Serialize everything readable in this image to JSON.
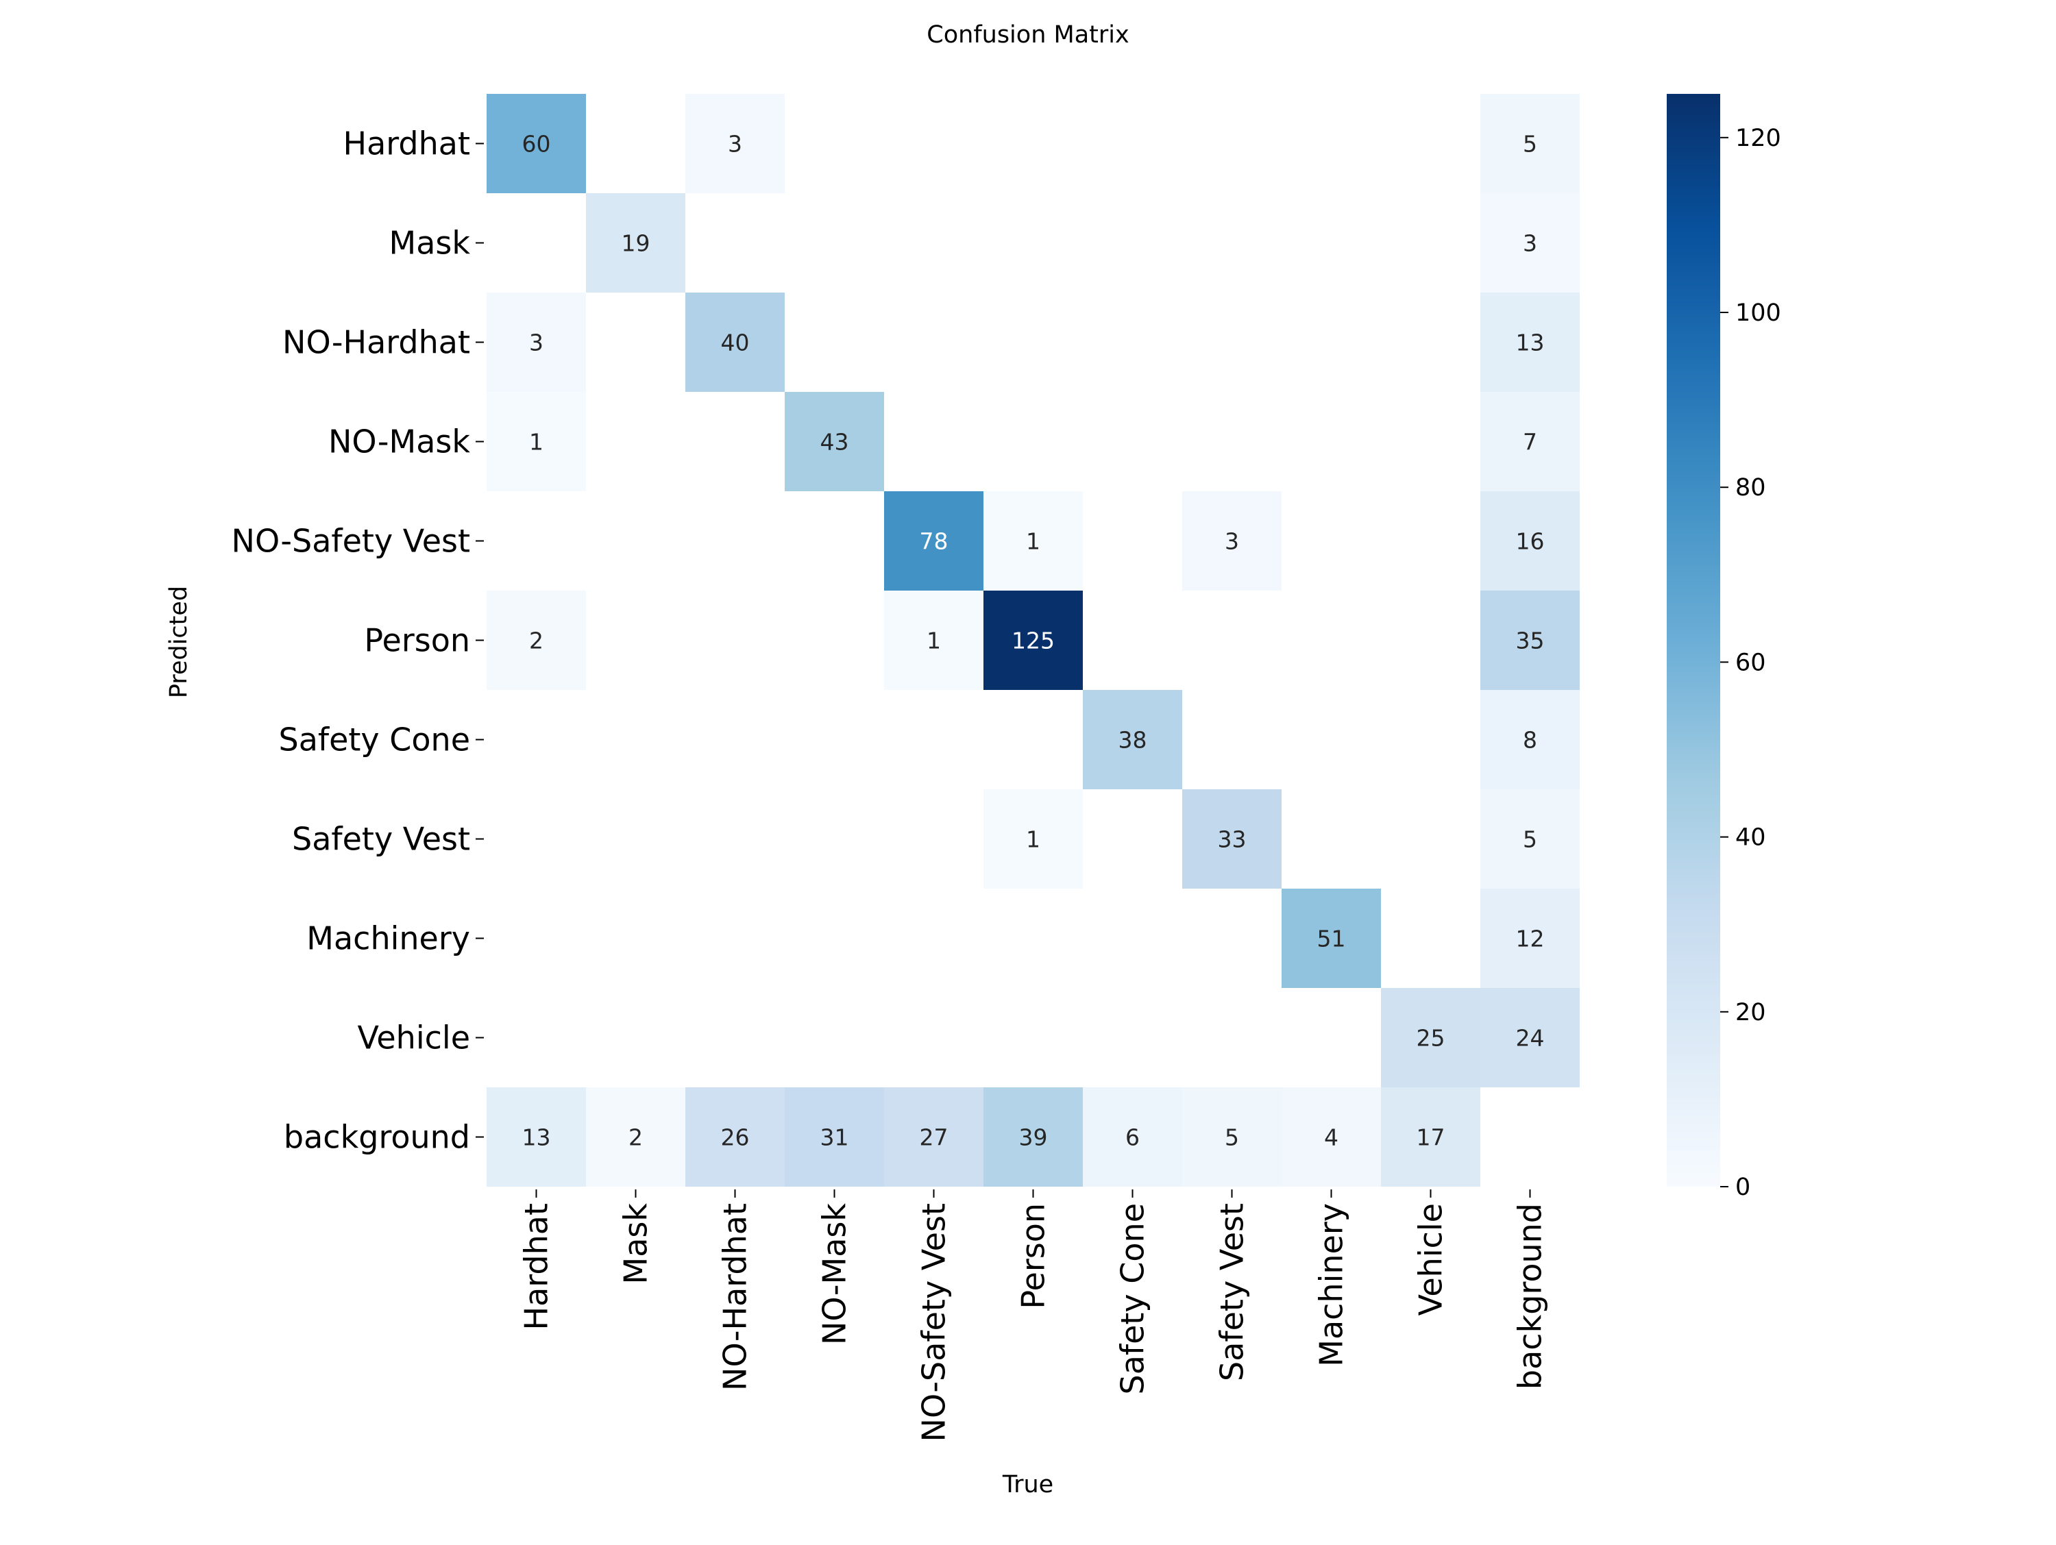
{
  "chart_data": {
    "type": "heatmap",
    "title": "Confusion Matrix",
    "xlabel": "True",
    "ylabel": "Predicted",
    "x_categories": [
      "Hardhat",
      "Mask",
      "NO-Hardhat",
      "NO-Mask",
      "NO-Safety Vest",
      "Person",
      "Safety Cone",
      "Safety Vest",
      "Machinery",
      "Vehicle",
      "background"
    ],
    "y_categories": [
      "Hardhat",
      "Mask",
      "NO-Hardhat",
      "NO-Mask",
      "NO-Safety Vest",
      "Person",
      "Safety Cone",
      "Safety Vest",
      "Machinery",
      "Vehicle",
      "background"
    ],
    "values": [
      [
        60,
        null,
        3,
        null,
        null,
        null,
        null,
        null,
        null,
        null,
        5
      ],
      [
        null,
        19,
        null,
        null,
        null,
        null,
        null,
        null,
        null,
        null,
        3
      ],
      [
        3,
        null,
        40,
        null,
        null,
        null,
        null,
        null,
        null,
        null,
        13
      ],
      [
        1,
        null,
        null,
        43,
        null,
        null,
        null,
        null,
        null,
        null,
        7
      ],
      [
        null,
        null,
        null,
        null,
        78,
        1,
        null,
        3,
        null,
        null,
        16
      ],
      [
        2,
        null,
        null,
        null,
        1,
        125,
        null,
        null,
        null,
        null,
        35
      ],
      [
        null,
        null,
        null,
        null,
        null,
        null,
        38,
        null,
        null,
        null,
        8
      ],
      [
        null,
        null,
        null,
        null,
        null,
        1,
        null,
        33,
        null,
        null,
        5
      ],
      [
        null,
        null,
        null,
        null,
        null,
        null,
        null,
        null,
        51,
        null,
        12
      ],
      [
        null,
        null,
        null,
        null,
        null,
        null,
        null,
        null,
        null,
        25,
        24
      ],
      [
        13,
        2,
        26,
        31,
        27,
        39,
        6,
        5,
        4,
        17,
        null
      ]
    ],
    "colorbar": {
      "min": 0,
      "max": 125,
      "ticks": [
        0,
        20,
        40,
        60,
        80,
        100,
        120
      ],
      "colormap": "Blues"
    }
  }
}
